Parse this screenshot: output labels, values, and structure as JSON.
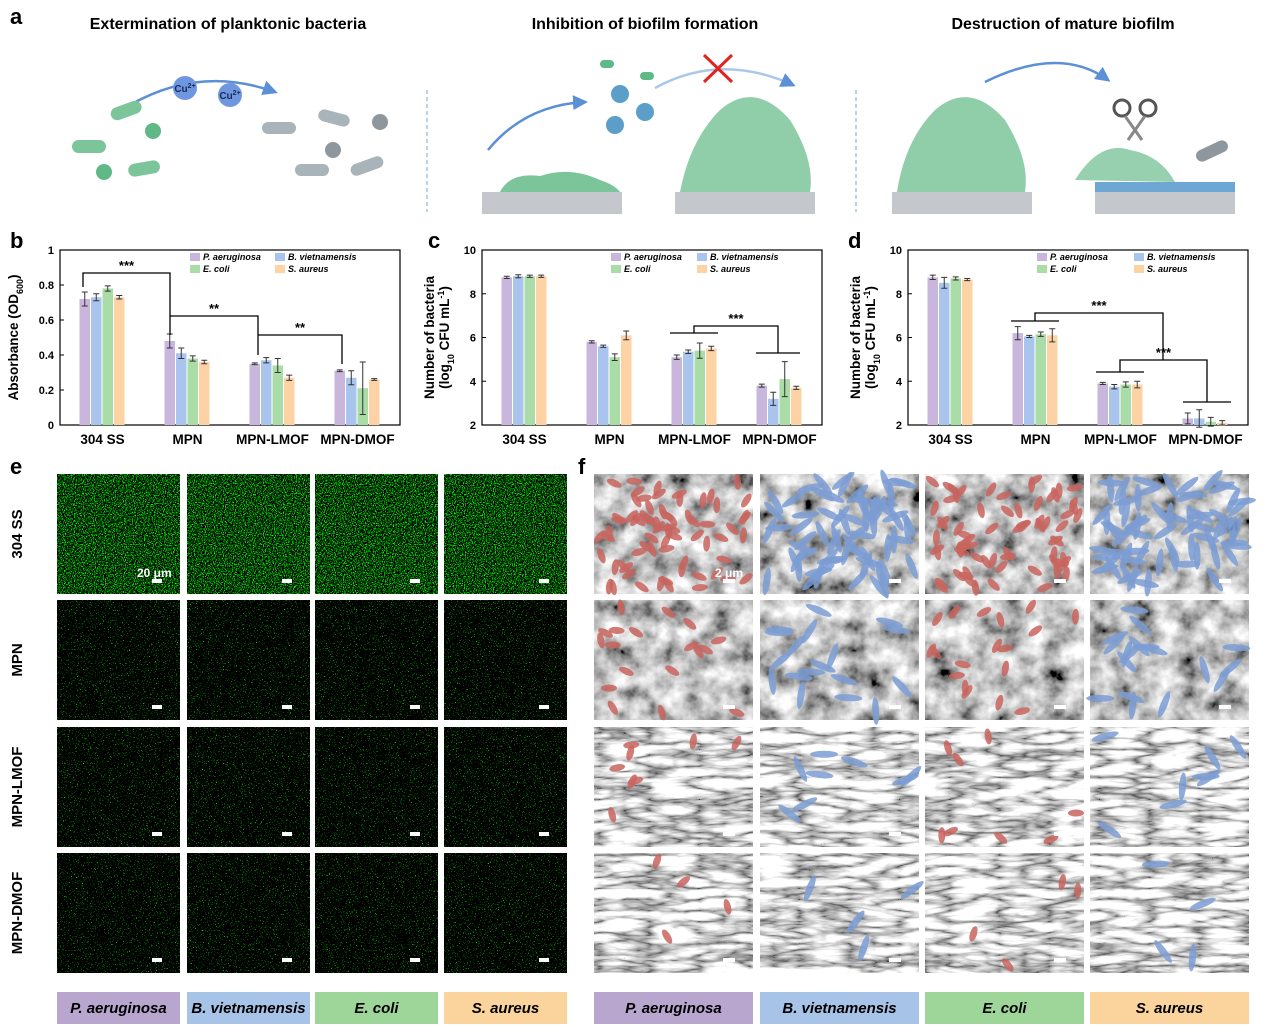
{
  "panel_labels": [
    "a",
    "b",
    "c",
    "d",
    "e",
    "f"
  ],
  "illustration": {
    "titles": [
      "Extermination of planktonic bacteria",
      "Inhibition of biofilm formation",
      "Destruction of mature biofilm"
    ],
    "ion_label": [
      "Cu",
      "2+"
    ]
  },
  "chart_data": [
    {
      "type": "bar",
      "ylabel": [
        [
          "Absorbance (OD",
          "600",
          ")"
        ]
      ],
      "categories": [
        "304 SS",
        "MPN",
        "MPN-LMOF",
        "MPN-DMOF"
      ],
      "series": [
        {
          "name": "P. aeruginosa",
          "color": "#c9b6dc",
          "values": [
            0.72,
            0.48,
            0.35,
            0.31
          ],
          "errors": [
            0.04,
            0.04,
            0.005,
            0.005
          ]
        },
        {
          "name": "B. vietnamensis",
          "color": "#a9c5ee",
          "values": [
            0.73,
            0.41,
            0.37,
            0.27
          ],
          "errors": [
            0.02,
            0.03,
            0.015,
            0.04
          ]
        },
        {
          "name": "E. coli",
          "color": "#a9dca6",
          "values": [
            0.78,
            0.38,
            0.34,
            0.21
          ],
          "errors": [
            0.015,
            0.015,
            0.04,
            0.15
          ]
        },
        {
          "name": "S. aureus",
          "color": "#fdd2a4",
          "values": [
            0.73,
            0.36,
            0.27,
            0.26
          ],
          "errors": [
            0.01,
            0.01,
            0.015,
            0.005
          ]
        }
      ],
      "ylim": [
        0,
        1
      ],
      "yticks": [
        0,
        0.2,
        0.4,
        0.6,
        0.8,
        1
      ],
      "annotations": [
        "***",
        "**",
        "**"
      ],
      "legend": "top-right"
    },
    {
      "type": "bar",
      "ylabel": [
        [
          "Number of bacteria"
        ],
        [
          "(log",
          "10",
          " CFU mL",
          "-1",
          ")"
        ]
      ],
      "categories": [
        "304 SS",
        "MPN",
        "MPN-LMOF",
        "MPN-DMOF"
      ],
      "series": [
        {
          "name": "P. aeruginosa",
          "color": "#c9b6dc",
          "values": [
            8.75,
            5.8,
            5.1,
            3.8
          ],
          "errors": [
            0.05,
            0.05,
            0.1,
            0.07
          ]
        },
        {
          "name": "B. vietnamensis",
          "color": "#a9c5ee",
          "values": [
            8.8,
            5.6,
            5.35,
            3.2
          ],
          "errors": [
            0.07,
            0.05,
            0.08,
            0.3
          ]
        },
        {
          "name": "E. coli",
          "color": "#a9dca6",
          "values": [
            8.8,
            5.1,
            5.4,
            4.1
          ],
          "errors": [
            0.05,
            0.15,
            0.35,
            0.8
          ]
        },
        {
          "name": "S. aureus",
          "color": "#fdd2a4",
          "values": [
            8.8,
            6.1,
            5.5,
            3.7
          ],
          "errors": [
            0.05,
            0.2,
            0.1,
            0.07
          ]
        }
      ],
      "ylim": [
        2,
        10
      ],
      "yticks": [
        2,
        4,
        6,
        8,
        10
      ],
      "annotations": [
        "***"
      ],
      "legend": "top-right"
    },
    {
      "type": "bar",
      "ylabel": [
        [
          "Number of bacteria"
        ],
        [
          "(log",
          "10",
          " CFU mL",
          "-1",
          ")"
        ]
      ],
      "categories": [
        "304 SS",
        "MPN",
        "MPN-LMOF",
        "MPN-DMOF"
      ],
      "series": [
        {
          "name": "P. aeruginosa",
          "color": "#c9b6dc",
          "values": [
            8.75,
            6.2,
            3.9,
            2.3
          ],
          "errors": [
            0.1,
            0.3,
            0.05,
            0.25
          ]
        },
        {
          "name": "B. vietnamensis",
          "color": "#a9c5ee",
          "values": [
            8.5,
            6.05,
            3.75,
            2.3
          ],
          "errors": [
            0.25,
            0.05,
            0.1,
            0.4
          ]
        },
        {
          "name": "E. coli",
          "color": "#a9dca6",
          "values": [
            8.7,
            6.15,
            3.85,
            2.15
          ],
          "errors": [
            0.07,
            0.1,
            0.12,
            0.2
          ]
        },
        {
          "name": "S. aureus",
          "color": "#fdd2a4",
          "values": [
            8.65,
            6.1,
            3.85,
            2.1
          ],
          "errors": [
            0.05,
            0.3,
            0.15,
            0.1
          ]
        }
      ],
      "ylim": [
        2,
        10
      ],
      "yticks": [
        2,
        4,
        6,
        8,
        10
      ],
      "annotations": [
        "***",
        "***"
      ],
      "legend": "top-right"
    }
  ],
  "microscopy": {
    "rows": [
      "304 SS",
      "MPN",
      "MPN-LMOF",
      "MPN-DMOF"
    ],
    "fluorescence_scale": "20 μm",
    "sem_scale": "2 μm",
    "species": [
      "P. aeruginosa",
      "B. vietnamensis",
      "E. coli",
      "S. aureus"
    ],
    "colors": [
      "#b8a6cf",
      "#a8c3e8",
      "#9ed69a",
      "#fbd39c"
    ]
  }
}
